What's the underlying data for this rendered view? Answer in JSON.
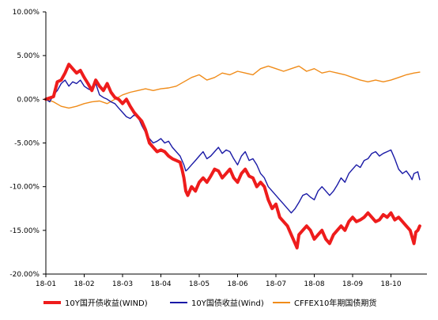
{
  "chart_data": {
    "type": "line",
    "title": "",
    "xlabel": "",
    "ylabel": "",
    "ylim": [
      -0.2,
      0.1
    ],
    "yticks": [
      0.1,
      0.05,
      0.0,
      -0.05,
      -0.1,
      -0.15,
      -0.2
    ],
    "ytick_labels": [
      "10.00%",
      "5.00%",
      "0.00%",
      "-5.00%",
      "-10.00%",
      "-15.00%",
      "-20.00%"
    ],
    "xticks": [
      "18-01",
      "18-02",
      "18-03",
      "18-04",
      "18-05",
      "18-06",
      "18-07",
      "18-08",
      "18-09",
      "18-10"
    ],
    "grid": false,
    "legend": "bottom",
    "series": [
      {
        "name": "10Y国开债收益(WIND)",
        "color": "#ee1c1c",
        "points": [
          [
            0,
            0.0
          ],
          [
            0.2,
            0.003
          ],
          [
            0.3,
            0.02
          ],
          [
            0.4,
            0.022
          ],
          [
            0.5,
            0.03
          ],
          [
            0.6,
            0.04
          ],
          [
            0.7,
            0.035
          ],
          [
            0.8,
            0.03
          ],
          [
            0.9,
            0.033
          ],
          [
            1.0,
            0.025
          ],
          [
            1.1,
            0.018
          ],
          [
            1.2,
            0.01
          ],
          [
            1.3,
            0.022
          ],
          [
            1.4,
            0.015
          ],
          [
            1.5,
            0.01
          ],
          [
            1.6,
            0.018
          ],
          [
            1.7,
            0.008
          ],
          [
            1.8,
            0.002
          ],
          [
            1.9,
            0.0
          ],
          [
            2.0,
            -0.005
          ],
          [
            2.1,
            0.0
          ],
          [
            2.2,
            -0.008
          ],
          [
            2.3,
            -0.015
          ],
          [
            2.4,
            -0.02
          ],
          [
            2.5,
            -0.025
          ],
          [
            2.6,
            -0.035
          ],
          [
            2.7,
            -0.05
          ],
          [
            2.8,
            -0.055
          ],
          [
            2.9,
            -0.06
          ],
          [
            3.0,
            -0.058
          ],
          [
            3.1,
            -0.06
          ],
          [
            3.2,
            -0.065
          ],
          [
            3.3,
            -0.068
          ],
          [
            3.4,
            -0.07
          ],
          [
            3.5,
            -0.072
          ],
          [
            3.55,
            -0.08
          ],
          [
            3.6,
            -0.09
          ],
          [
            3.65,
            -0.105
          ],
          [
            3.7,
            -0.11
          ],
          [
            3.8,
            -0.1
          ],
          [
            3.9,
            -0.105
          ],
          [
            4.0,
            -0.095
          ],
          [
            4.1,
            -0.09
          ],
          [
            4.2,
            -0.095
          ],
          [
            4.3,
            -0.088
          ],
          [
            4.4,
            -0.08
          ],
          [
            4.5,
            -0.082
          ],
          [
            4.6,
            -0.09
          ],
          [
            4.7,
            -0.085
          ],
          [
            4.8,
            -0.08
          ],
          [
            4.9,
            -0.09
          ],
          [
            5.0,
            -0.095
          ],
          [
            5.1,
            -0.085
          ],
          [
            5.2,
            -0.08
          ],
          [
            5.3,
            -0.088
          ],
          [
            5.4,
            -0.09
          ],
          [
            5.5,
            -0.1
          ],
          [
            5.6,
            -0.095
          ],
          [
            5.7,
            -0.1
          ],
          [
            5.8,
            -0.115
          ],
          [
            5.9,
            -0.125
          ],
          [
            6.0,
            -0.12
          ],
          [
            6.1,
            -0.135
          ],
          [
            6.2,
            -0.14
          ],
          [
            6.3,
            -0.145
          ],
          [
            6.4,
            -0.155
          ],
          [
            6.5,
            -0.165
          ],
          [
            6.55,
            -0.17
          ],
          [
            6.6,
            -0.155
          ],
          [
            6.7,
            -0.15
          ],
          [
            6.8,
            -0.145
          ],
          [
            6.9,
            -0.15
          ],
          [
            7.0,
            -0.16
          ],
          [
            7.1,
            -0.155
          ],
          [
            7.2,
            -0.15
          ],
          [
            7.3,
            -0.16
          ],
          [
            7.4,
            -0.165
          ],
          [
            7.5,
            -0.155
          ],
          [
            7.6,
            -0.15
          ],
          [
            7.7,
            -0.145
          ],
          [
            7.8,
            -0.15
          ],
          [
            7.9,
            -0.14
          ],
          [
            8.0,
            -0.135
          ],
          [
            8.1,
            -0.14
          ],
          [
            8.2,
            -0.138
          ],
          [
            8.3,
            -0.135
          ],
          [
            8.4,
            -0.13
          ],
          [
            8.5,
            -0.135
          ],
          [
            8.6,
            -0.14
          ],
          [
            8.7,
            -0.138
          ],
          [
            8.8,
            -0.132
          ],
          [
            8.9,
            -0.135
          ],
          [
            9.0,
            -0.13
          ],
          [
            9.1,
            -0.138
          ],
          [
            9.2,
            -0.135
          ],
          [
            9.3,
            -0.14
          ],
          [
            9.4,
            -0.145
          ],
          [
            9.5,
            -0.15
          ],
          [
            9.6,
            -0.165
          ],
          [
            9.65,
            -0.152
          ],
          [
            9.7,
            -0.15
          ],
          [
            9.75,
            -0.145
          ]
        ]
      },
      {
        "name": "10Y国债收益(Wind)",
        "color": "#1a1aa6",
        "points": [
          [
            0,
            0.0
          ],
          [
            0.1,
            -0.003
          ],
          [
            0.2,
            0.005
          ],
          [
            0.3,
            0.01
          ],
          [
            0.4,
            0.018
          ],
          [
            0.5,
            0.022
          ],
          [
            0.6,
            0.015
          ],
          [
            0.7,
            0.02
          ],
          [
            0.8,
            0.018
          ],
          [
            0.9,
            0.022
          ],
          [
            1.0,
            0.015
          ],
          [
            1.1,
            0.012
          ],
          [
            1.2,
            0.01
          ],
          [
            1.3,
            0.018
          ],
          [
            1.4,
            0.005
          ],
          [
            1.5,
            0.002
          ],
          [
            1.6,
            0.0
          ],
          [
            1.7,
            -0.003
          ],
          [
            1.8,
            -0.005
          ],
          [
            1.9,
            -0.01
          ],
          [
            2.0,
            -0.015
          ],
          [
            2.1,
            -0.02
          ],
          [
            2.2,
            -0.022
          ],
          [
            2.3,
            -0.018
          ],
          [
            2.4,
            -0.02
          ],
          [
            2.5,
            -0.03
          ],
          [
            2.6,
            -0.038
          ],
          [
            2.7,
            -0.045
          ],
          [
            2.8,
            -0.05
          ],
          [
            2.9,
            -0.048
          ],
          [
            3.0,
            -0.045
          ],
          [
            3.1,
            -0.05
          ],
          [
            3.2,
            -0.048
          ],
          [
            3.3,
            -0.055
          ],
          [
            3.4,
            -0.06
          ],
          [
            3.5,
            -0.065
          ],
          [
            3.6,
            -0.075
          ],
          [
            3.65,
            -0.082
          ],
          [
            3.7,
            -0.08
          ],
          [
            3.8,
            -0.075
          ],
          [
            3.9,
            -0.07
          ],
          [
            4.0,
            -0.065
          ],
          [
            4.1,
            -0.06
          ],
          [
            4.2,
            -0.068
          ],
          [
            4.3,
            -0.065
          ],
          [
            4.4,
            -0.06
          ],
          [
            4.5,
            -0.055
          ],
          [
            4.6,
            -0.062
          ],
          [
            4.7,
            -0.058
          ],
          [
            4.8,
            -0.06
          ],
          [
            4.9,
            -0.068
          ],
          [
            5.0,
            -0.075
          ],
          [
            5.1,
            -0.065
          ],
          [
            5.2,
            -0.06
          ],
          [
            5.3,
            -0.07
          ],
          [
            5.4,
            -0.068
          ],
          [
            5.5,
            -0.075
          ],
          [
            5.6,
            -0.085
          ],
          [
            5.7,
            -0.09
          ],
          [
            5.8,
            -0.1
          ],
          [
            5.9,
            -0.105
          ],
          [
            6.0,
            -0.11
          ],
          [
            6.1,
            -0.115
          ],
          [
            6.2,
            -0.12
          ],
          [
            6.3,
            -0.125
          ],
          [
            6.4,
            -0.13
          ],
          [
            6.5,
            -0.125
          ],
          [
            6.6,
            -0.118
          ],
          [
            6.7,
            -0.11
          ],
          [
            6.8,
            -0.108
          ],
          [
            6.9,
            -0.112
          ],
          [
            7.0,
            -0.115
          ],
          [
            7.1,
            -0.105
          ],
          [
            7.2,
            -0.1
          ],
          [
            7.3,
            -0.105
          ],
          [
            7.4,
            -0.11
          ],
          [
            7.5,
            -0.105
          ],
          [
            7.6,
            -0.098
          ],
          [
            7.7,
            -0.09
          ],
          [
            7.8,
            -0.095
          ],
          [
            7.9,
            -0.085
          ],
          [
            8.0,
            -0.08
          ],
          [
            8.1,
            -0.075
          ],
          [
            8.2,
            -0.078
          ],
          [
            8.3,
            -0.07
          ],
          [
            8.4,
            -0.068
          ],
          [
            8.5,
            -0.062
          ],
          [
            8.6,
            -0.06
          ],
          [
            8.7,
            -0.065
          ],
          [
            8.8,
            -0.062
          ],
          [
            8.9,
            -0.06
          ],
          [
            9.0,
            -0.058
          ],
          [
            9.1,
            -0.068
          ],
          [
            9.2,
            -0.08
          ],
          [
            9.3,
            -0.085
          ],
          [
            9.4,
            -0.082
          ],
          [
            9.5,
            -0.088
          ],
          [
            9.55,
            -0.092
          ],
          [
            9.6,
            -0.085
          ],
          [
            9.7,
            -0.083
          ],
          [
            9.75,
            -0.092
          ]
        ]
      },
      {
        "name": "CFFEX10年期国债期货",
        "color": "#f08c1a",
        "points": [
          [
            0,
            0.0
          ],
          [
            0.2,
            -0.003
          ],
          [
            0.4,
            -0.008
          ],
          [
            0.6,
            -0.01
          ],
          [
            0.8,
            -0.008
          ],
          [
            1.0,
            -0.005
          ],
          [
            1.2,
            -0.003
          ],
          [
            1.4,
            -0.002
          ],
          [
            1.6,
            -0.005
          ],
          [
            1.8,
            0.0
          ],
          [
            2.0,
            0.005
          ],
          [
            2.2,
            0.008
          ],
          [
            2.4,
            0.01
          ],
          [
            2.6,
            0.012
          ],
          [
            2.8,
            0.01
          ],
          [
            3.0,
            0.012
          ],
          [
            3.2,
            0.013
          ],
          [
            3.4,
            0.015
          ],
          [
            3.6,
            0.02
          ],
          [
            3.8,
            0.025
          ],
          [
            4.0,
            0.028
          ],
          [
            4.2,
            0.022
          ],
          [
            4.4,
            0.025
          ],
          [
            4.6,
            0.03
          ],
          [
            4.8,
            0.028
          ],
          [
            5.0,
            0.032
          ],
          [
            5.2,
            0.03
          ],
          [
            5.4,
            0.028
          ],
          [
            5.6,
            0.035
          ],
          [
            5.8,
            0.038
          ],
          [
            6.0,
            0.035
          ],
          [
            6.2,
            0.032
          ],
          [
            6.4,
            0.035
          ],
          [
            6.6,
            0.038
          ],
          [
            6.8,
            0.032
          ],
          [
            7.0,
            0.035
          ],
          [
            7.2,
            0.03
          ],
          [
            7.4,
            0.032
          ],
          [
            7.6,
            0.03
          ],
          [
            7.8,
            0.028
          ],
          [
            8.0,
            0.025
          ],
          [
            8.2,
            0.022
          ],
          [
            8.4,
            0.02
          ],
          [
            8.6,
            0.022
          ],
          [
            8.8,
            0.02
          ],
          [
            9.0,
            0.022
          ],
          [
            9.2,
            0.025
          ],
          [
            9.4,
            0.028
          ],
          [
            9.6,
            0.03
          ],
          [
            9.75,
            0.031
          ]
        ]
      }
    ]
  }
}
